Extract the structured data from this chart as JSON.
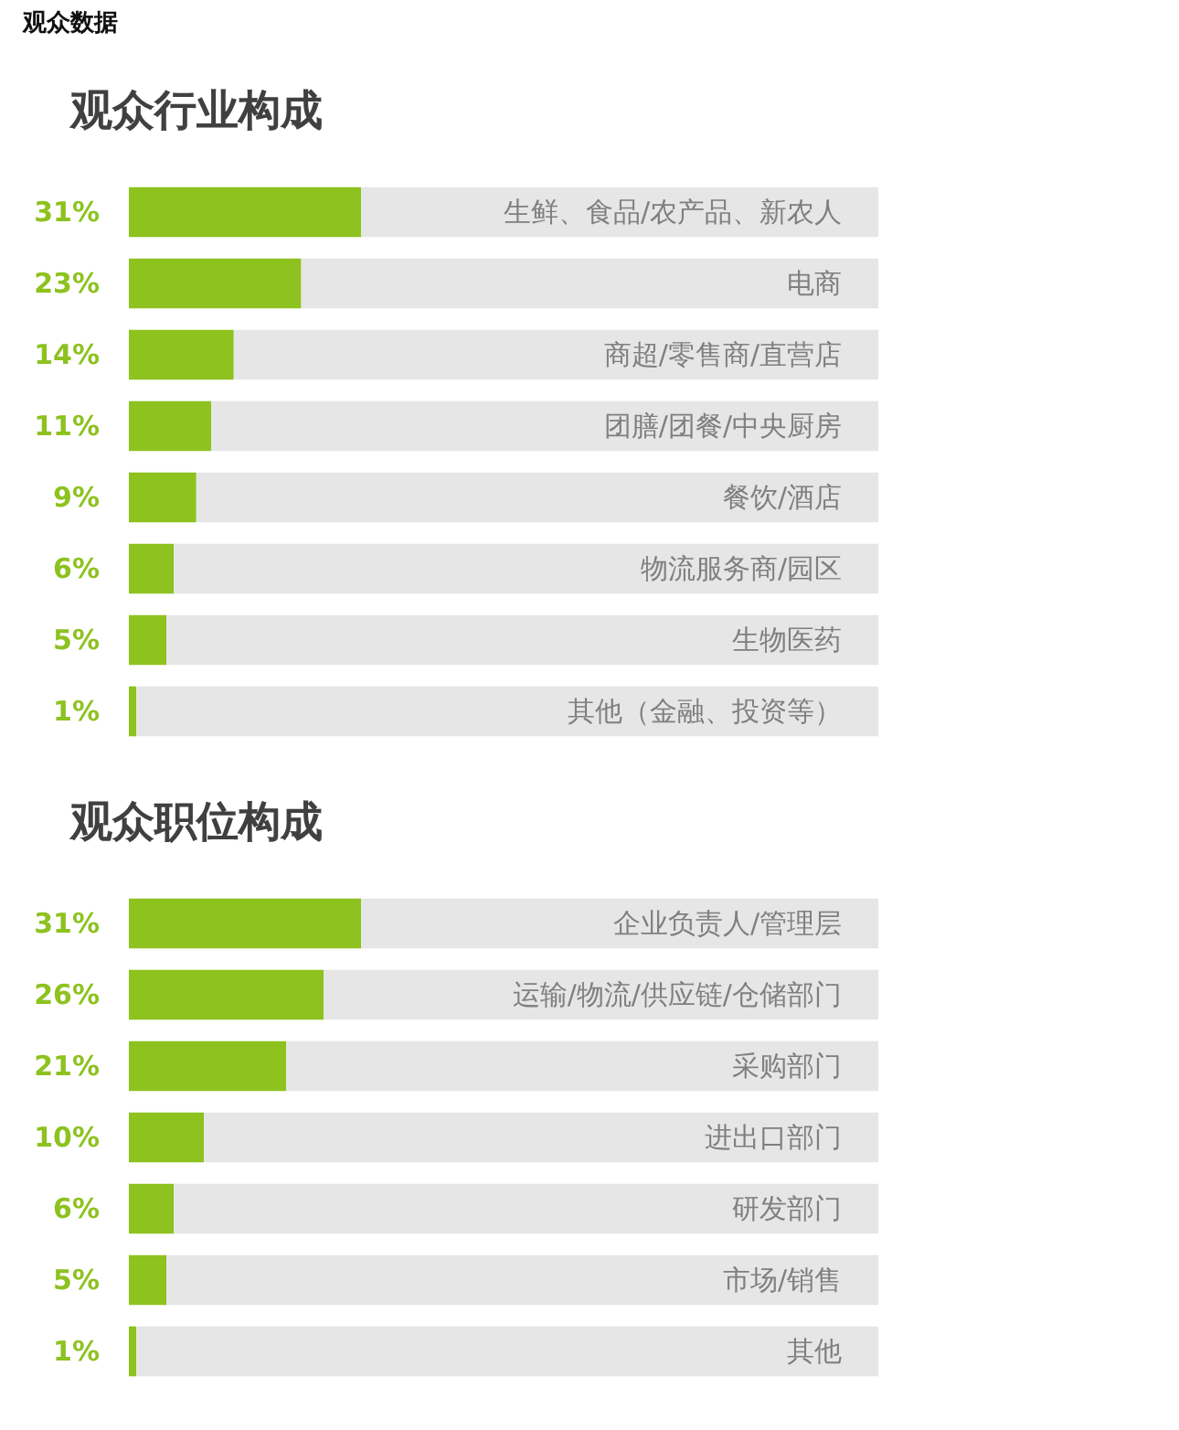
{
  "chart_data": [
    {
      "type": "bar",
      "orientation": "horizontal",
      "stacked": true,
      "title": "观众行业构成",
      "annotations": [
        "观众数据"
      ],
      "categories": [
        "生鲜、食品/农产品、新农人",
        "电商",
        "商超/零售商/直营店",
        "团膳/团餐/中央厨房",
        "餐饮/酒店",
        "物流服务商/园区",
        "生物医药",
        "其他（金融、投资等）"
      ],
      "series": [
        {
          "color": "#8dc21f",
          "values": [
            31,
            23,
            14,
            11,
            9,
            6,
            5,
            1
          ],
          "value_labels": [
            "31%",
            "23%",
            "14%",
            "11%",
            "9%",
            "6%",
            "5%",
            "1%"
          ]
        },
        {
          "color": "#e6e6e6",
          "values": [
            69,
            77,
            86,
            89,
            91,
            94,
            95,
            99
          ]
        }
      ],
      "xlim": [
        0,
        100
      ],
      "tick_labels": "y"
    },
    {
      "type": "bar",
      "orientation": "horizontal",
      "stacked": true,
      "title": "观众职位构成",
      "categories": [
        "企业负责人/管理层",
        "运输/物流/供应链/仓储部门",
        "采购部门",
        "进出口部门",
        "研发部门",
        "市场/销售",
        "其他"
      ],
      "series": [
        {
          "color": "#8dc21f",
          "values": [
            31,
            26,
            21,
            10,
            6,
            5,
            1
          ],
          "value_labels": [
            "31%",
            "26%",
            "21%",
            "10%",
            "6%",
            "5%",
            "1%"
          ]
        },
        {
          "color": "#e6e6e6",
          "values": [
            69,
            74,
            79,
            90,
            94,
            95,
            99
          ]
        }
      ],
      "xlim": [
        0,
        100
      ],
      "tick_labels": "y"
    }
  ]
}
